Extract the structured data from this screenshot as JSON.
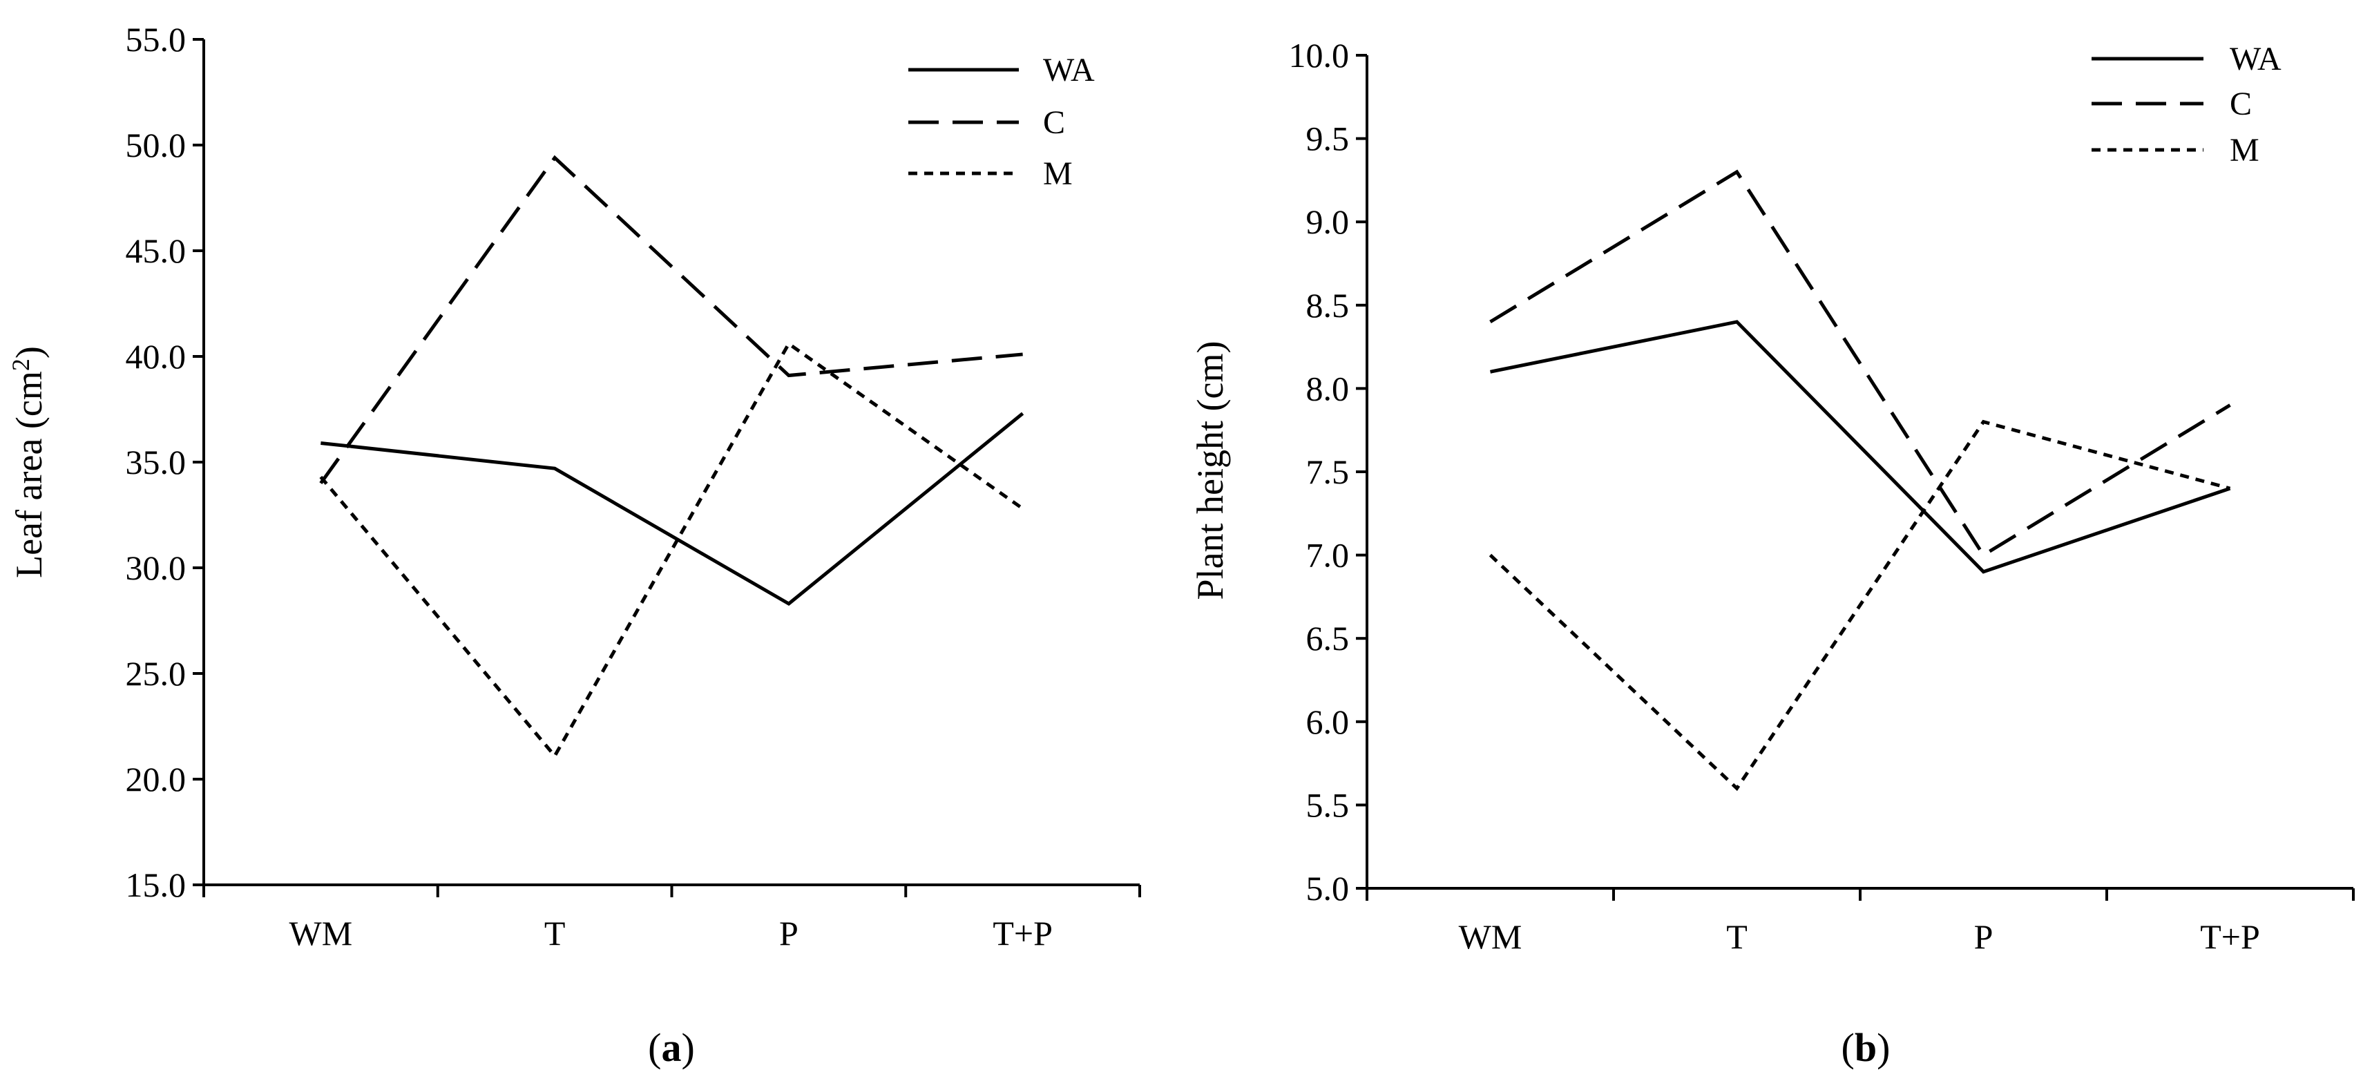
{
  "chart_data": [
    {
      "panel": "a",
      "type": "line",
      "title": "",
      "xlabel": "",
      "ylabel": "Leaf area (cm",
      "ylabel_sup": "2",
      "ylabel_close": ")",
      "categories": [
        "WM",
        "T",
        "P",
        "T+P"
      ],
      "ylim": [
        15.0,
        55.0
      ],
      "yticks": [
        "15.0",
        "20.0",
        "25.0",
        "30.0",
        "35.0",
        "40.0",
        "45.0",
        "50.0",
        "55.0"
      ],
      "legend_position": "top-right",
      "series": [
        {
          "name": "WA",
          "style": "solid",
          "values": [
            35.9,
            34.7,
            28.3,
            37.3
          ]
        },
        {
          "name": "C",
          "style": "long-dash",
          "values": [
            34.0,
            49.4,
            39.1,
            40.1
          ]
        },
        {
          "name": "M",
          "style": "short-dash",
          "values": [
            34.3,
            21.1,
            40.6,
            32.8
          ]
        }
      ],
      "caption_open": "(",
      "caption_letter": "a",
      "caption_close": ")"
    },
    {
      "panel": "b",
      "type": "line",
      "title": "",
      "xlabel": "",
      "ylabel": "Plant height (cm)",
      "categories": [
        "WM",
        "T",
        "P",
        "T+P"
      ],
      "ylim": [
        5.0,
        10.0
      ],
      "yticks": [
        "5.0",
        "5.5",
        "6.0",
        "6.5",
        "7.0",
        "7.5",
        "8.0",
        "8.5",
        "9.0",
        "9.5",
        "10.0"
      ],
      "legend_position": "top-right",
      "series": [
        {
          "name": "WA",
          "style": "solid",
          "values": [
            8.1,
            8.4,
            6.9,
            7.4
          ]
        },
        {
          "name": "C",
          "style": "long-dash",
          "values": [
            8.4,
            9.3,
            7.0,
            7.9
          ]
        },
        {
          "name": "M",
          "style": "short-dash",
          "values": [
            7.0,
            5.6,
            7.8,
            7.4
          ]
        }
      ],
      "caption_open": "(",
      "caption_letter": "b",
      "caption_close": ")"
    }
  ]
}
